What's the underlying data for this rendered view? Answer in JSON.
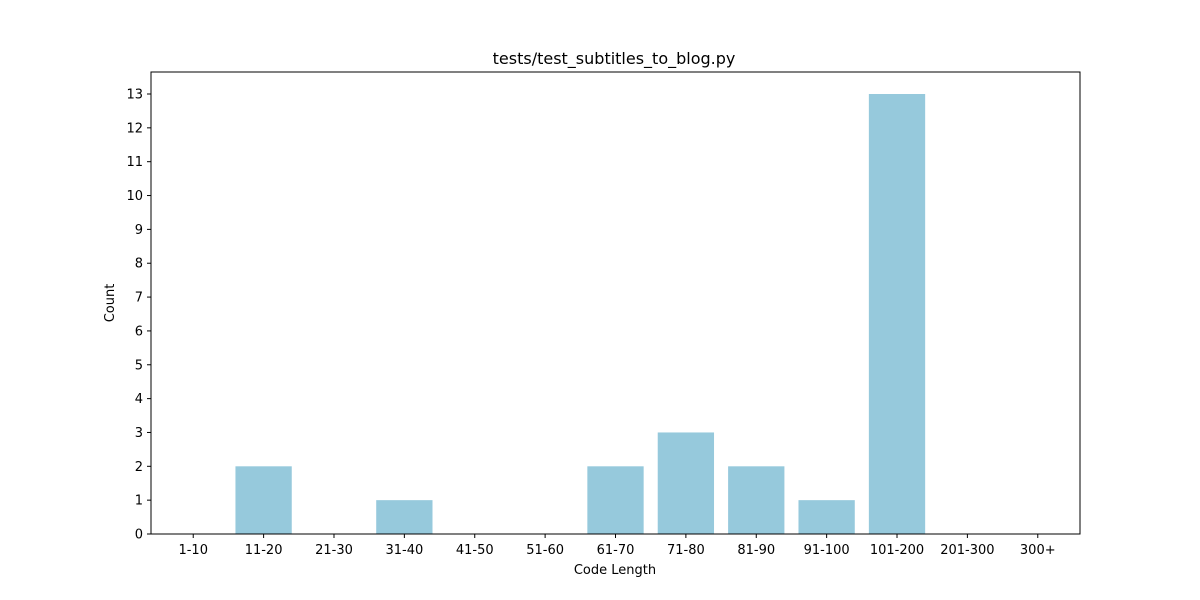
{
  "chart_data": {
    "type": "bar",
    "title": "tests/test_subtitles_to_blog.py",
    "xlabel": "Code Length",
    "ylabel": "Count",
    "categories": [
      "1-10",
      "11-20",
      "21-30",
      "31-40",
      "41-50",
      "51-60",
      "61-70",
      "71-80",
      "81-90",
      "91-100",
      "101-200",
      "201-300",
      "300+"
    ],
    "values": [
      0,
      2,
      0,
      1,
      0,
      0,
      2,
      3,
      2,
      1,
      13,
      0,
      0
    ],
    "ylim": [
      0,
      13.65
    ],
    "yticks": [
      0,
      1,
      2,
      3,
      4,
      5,
      6,
      7,
      8,
      9,
      10,
      11,
      12,
      13
    ],
    "bar_color": "#96c9dc",
    "grid": false,
    "legend": "none"
  }
}
